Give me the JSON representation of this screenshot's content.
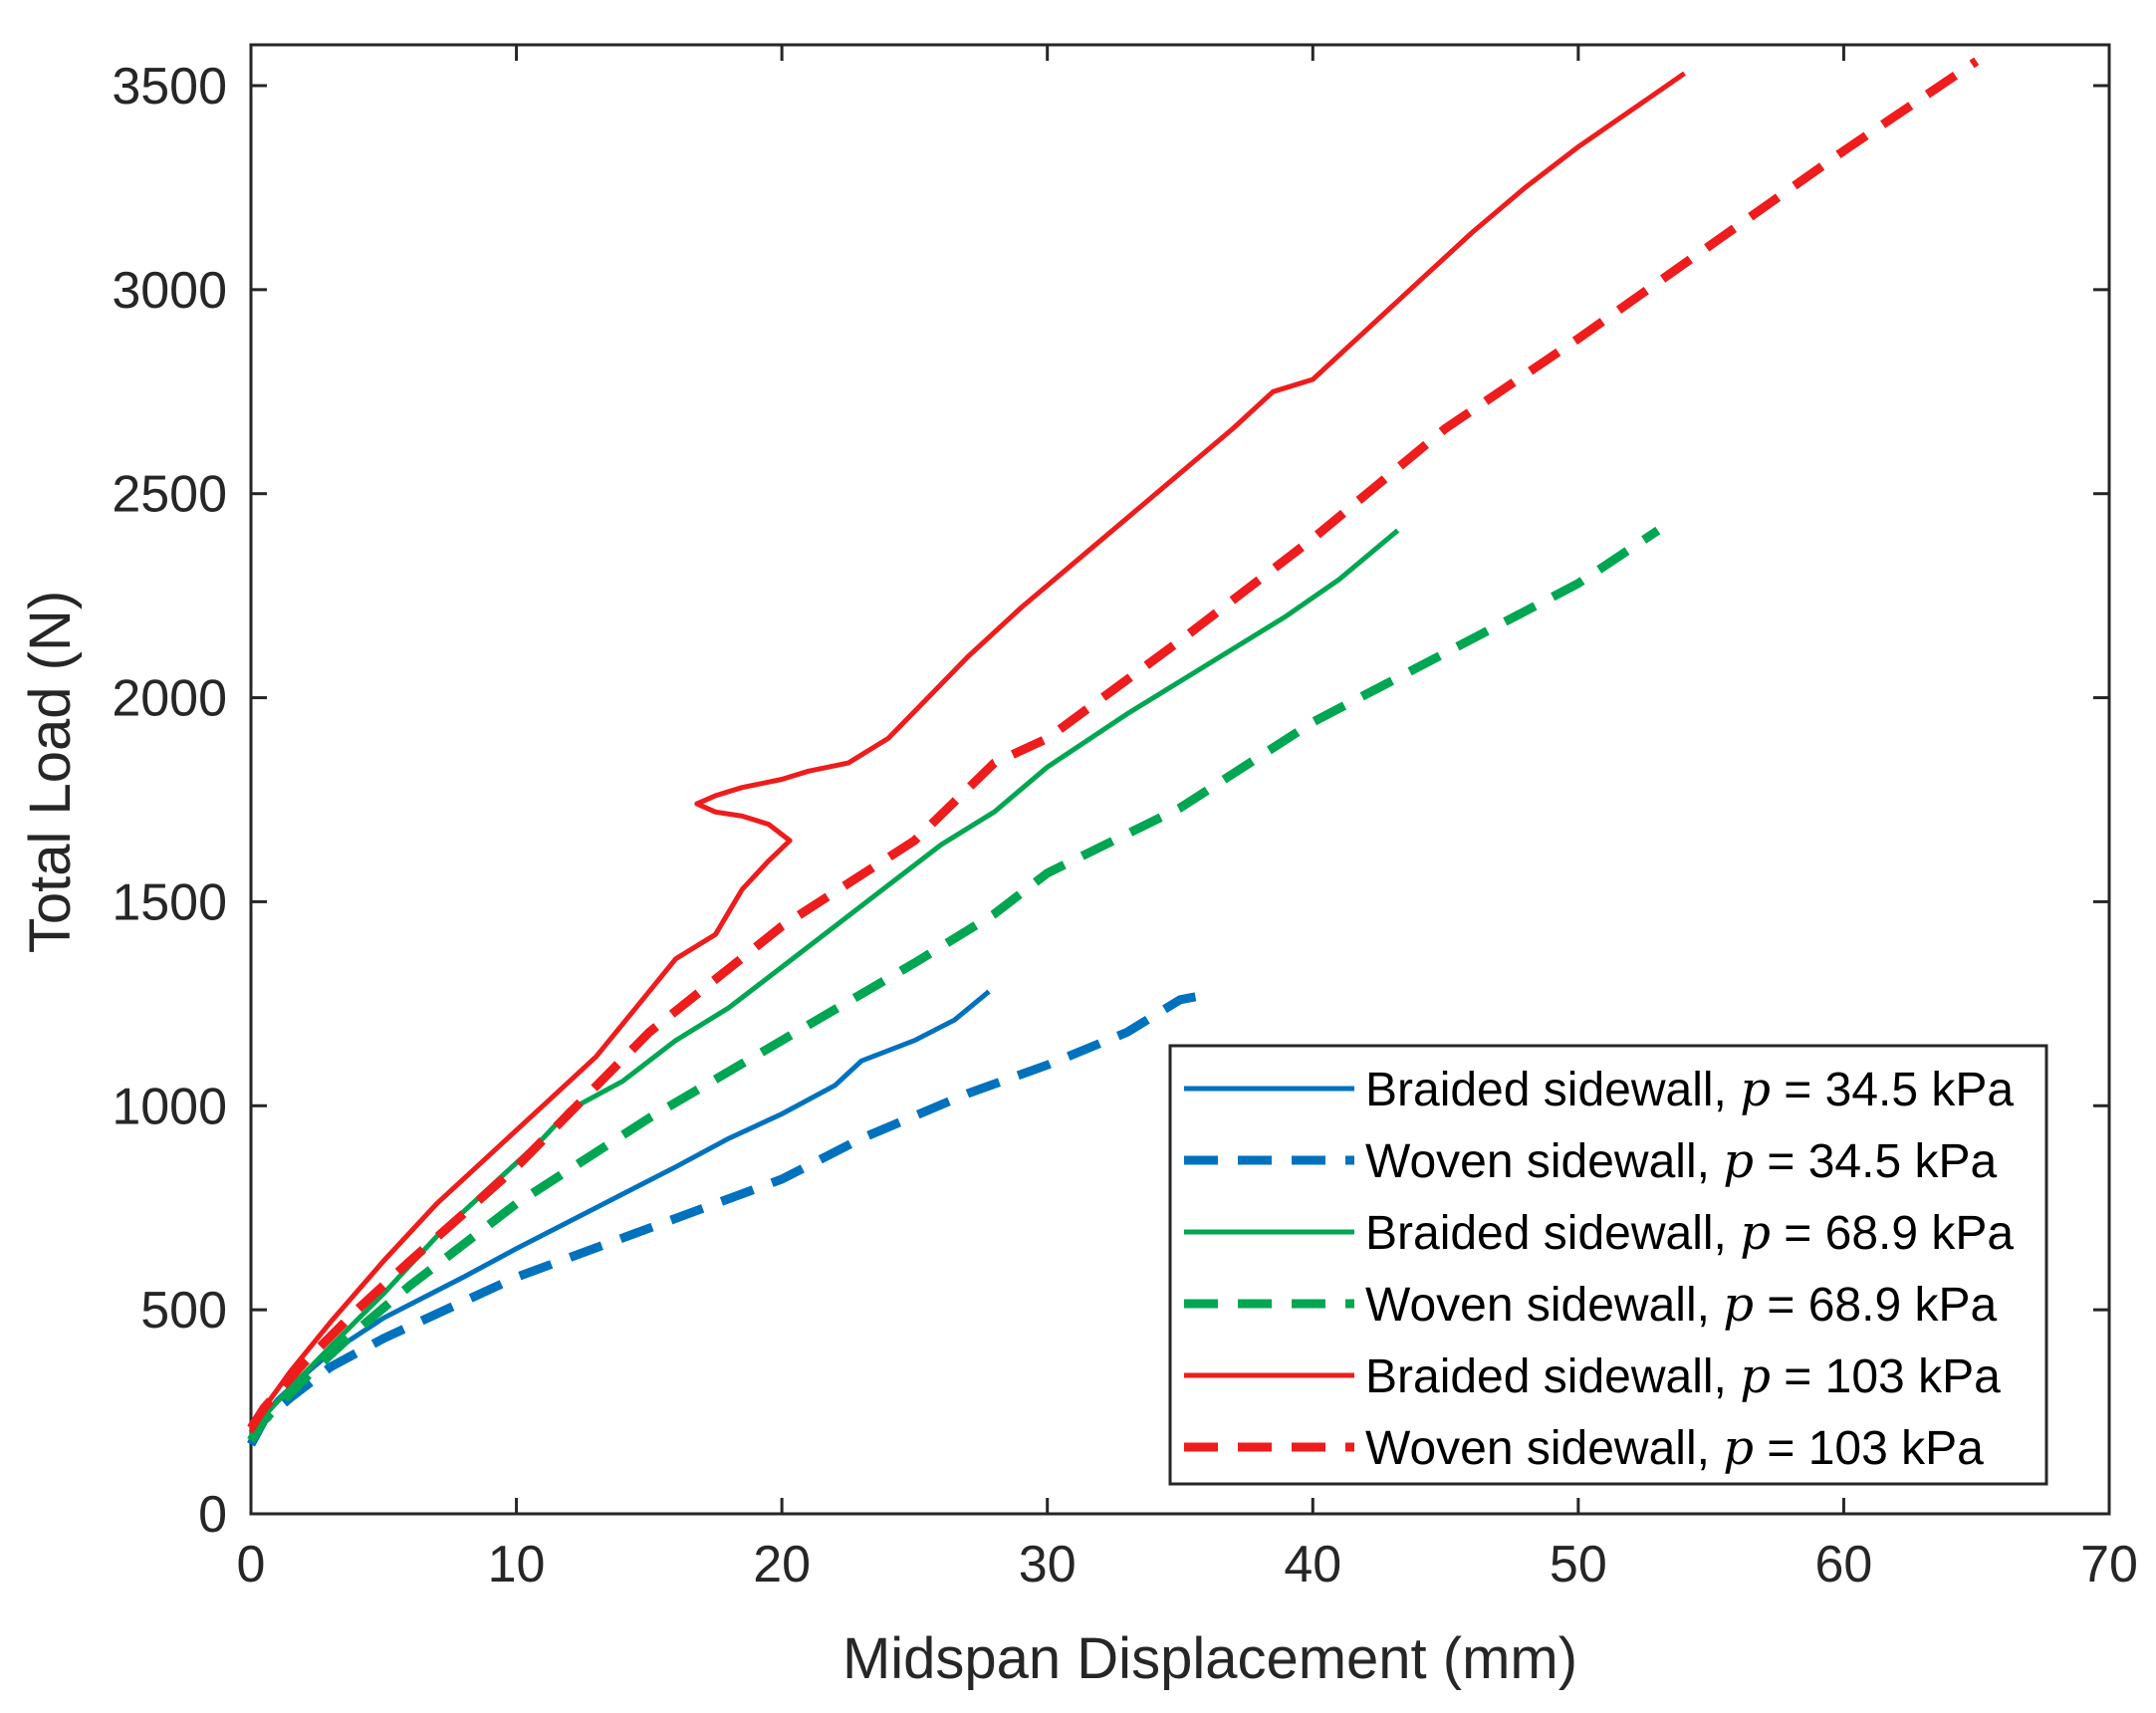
{
  "chart_data": {
    "type": "line",
    "title": "",
    "xlabel": "Midspan  Displacement  (mm)",
    "ylabel": "Total Load (N)",
    "xlim": [
      0,
      70
    ],
    "ylim": [
      0,
      3600
    ],
    "xticks": [
      0,
      10,
      20,
      30,
      40,
      50,
      60,
      70
    ],
    "yticks": [
      0,
      500,
      1000,
      1500,
      2000,
      2500,
      3000,
      3500
    ],
    "grid": false,
    "legend_position": "bottom-right",
    "series": [
      {
        "name": "Braided sidewall, p = 34.5 kPa",
        "label_prefix": "Braided sidewall, ",
        "label_symbol": "p",
        "label_suffix": " = 34.5 kPa",
        "color": "#0072BD",
        "style": "solid",
        "points": [
          [
            0,
            180
          ],
          [
            0.3,
            220
          ],
          [
            1,
            280
          ],
          [
            2,
            340
          ],
          [
            3,
            395
          ],
          [
            5,
            480
          ],
          [
            8,
            580
          ],
          [
            10,
            650
          ],
          [
            13,
            750
          ],
          [
            16,
            850
          ],
          [
            18,
            920
          ],
          [
            20,
            980
          ],
          [
            22,
            1050
          ],
          [
            23,
            1110
          ],
          [
            25,
            1160
          ],
          [
            26.5,
            1210
          ],
          [
            27.8,
            1280
          ]
        ]
      },
      {
        "name": "Woven sidewall, p = 34.5 kPa",
        "label_prefix": "Woven sidewall, ",
        "label_symbol": "p",
        "label_suffix": " = 34.5 kPa",
        "color": "#0072BD",
        "style": "dashed",
        "points": [
          [
            0,
            170
          ],
          [
            0.5,
            230
          ],
          [
            1.5,
            285
          ],
          [
            3,
            360
          ],
          [
            5,
            430
          ],
          [
            8,
            520
          ],
          [
            10,
            580
          ],
          [
            15,
            700
          ],
          [
            20,
            820
          ],
          [
            23,
            920
          ],
          [
            27,
            1030
          ],
          [
            30,
            1100
          ],
          [
            33,
            1180
          ],
          [
            35,
            1260
          ],
          [
            35.8,
            1270
          ]
        ]
      },
      {
        "name": "Braided sidewall, p = 68.9 kPa",
        "label_prefix": "Braided sidewall, ",
        "label_symbol": "p",
        "label_suffix": " = 68.9 kPa",
        "color": "#00A651",
        "style": "solid",
        "points": [
          [
            0,
            190
          ],
          [
            0.5,
            240
          ],
          [
            1.5,
            310
          ],
          [
            3,
            410
          ],
          [
            5,
            540
          ],
          [
            7,
            680
          ],
          [
            9,
            800
          ],
          [
            11,
            920
          ],
          [
            12,
            990
          ],
          [
            14,
            1060
          ],
          [
            16,
            1160
          ],
          [
            18,
            1240
          ],
          [
            20,
            1340
          ],
          [
            22,
            1440
          ],
          [
            24,
            1540
          ],
          [
            26,
            1640
          ],
          [
            28,
            1720
          ],
          [
            30,
            1830
          ],
          [
            33,
            1960
          ],
          [
            36,
            2080
          ],
          [
            39,
            2200
          ],
          [
            41,
            2290
          ],
          [
            43.2,
            2410
          ]
        ]
      },
      {
        "name": "Woven sidewall, p = 68.9 kPa",
        "label_prefix": "Woven sidewall, ",
        "label_symbol": "p",
        "label_suffix": " = 68.9 kPa",
        "color": "#00A651",
        "style": "dashed",
        "points": [
          [
            0,
            180
          ],
          [
            0.5,
            230
          ],
          [
            2,
            330
          ],
          [
            4,
            450
          ],
          [
            6,
            560
          ],
          [
            10,
            760
          ],
          [
            15,
            970
          ],
          [
            20,
            1160
          ],
          [
            25,
            1350
          ],
          [
            28,
            1470
          ],
          [
            30,
            1570
          ],
          [
            35,
            1730
          ],
          [
            40,
            1940
          ],
          [
            45,
            2110
          ],
          [
            50,
            2280
          ],
          [
            53,
            2410
          ]
        ]
      },
      {
        "name": "Braided sidewall, p = 103 kPa",
        "label_prefix": "Braided sidewall, ",
        "label_symbol": "p",
        "label_suffix": " = 103 kPa",
        "color": "#EE1C1C",
        "style": "solid",
        "points": [
          [
            0,
            200
          ],
          [
            0.5,
            260
          ],
          [
            1.5,
            350
          ],
          [
            3,
            470
          ],
          [
            5,
            620
          ],
          [
            7,
            760
          ],
          [
            9,
            880
          ],
          [
            11,
            1000
          ],
          [
            13,
            1120
          ],
          [
            15,
            1280
          ],
          [
            16,
            1360
          ],
          [
            17.5,
            1420
          ],
          [
            18.5,
            1530
          ],
          [
            19.5,
            1600
          ],
          [
            20.3,
            1650
          ],
          [
            19.5,
            1690
          ],
          [
            18.5,
            1710
          ],
          [
            17.5,
            1720
          ],
          [
            16.8,
            1740
          ],
          [
            17.5,
            1760
          ],
          [
            18.5,
            1780
          ],
          [
            20,
            1800
          ],
          [
            21,
            1820
          ],
          [
            22.5,
            1840
          ],
          [
            24,
            1900
          ],
          [
            25.5,
            2000
          ],
          [
            27,
            2100
          ],
          [
            29,
            2220
          ],
          [
            31,
            2330
          ],
          [
            33,
            2440
          ],
          [
            35,
            2550
          ],
          [
            37,
            2660
          ],
          [
            38.5,
            2750
          ],
          [
            40,
            2780
          ],
          [
            42,
            2900
          ],
          [
            44,
            3020
          ],
          [
            46,
            3140
          ],
          [
            48,
            3250
          ],
          [
            50,
            3350
          ],
          [
            52,
            3440
          ],
          [
            54,
            3530
          ]
        ]
      },
      {
        "name": "Woven sidewall, p = 103 kPa",
        "label_prefix": "Woven sidewall, ",
        "label_symbol": "p",
        "label_suffix": " = 103 kPa",
        "color": "#EE1C1C",
        "style": "dashed",
        "points": [
          [
            0,
            210
          ],
          [
            0.5,
            260
          ],
          [
            2,
            370
          ],
          [
            4,
            500
          ],
          [
            6,
            620
          ],
          [
            10,
            850
          ],
          [
            15,
            1180
          ],
          [
            20,
            1440
          ],
          [
            25,
            1650
          ],
          [
            28,
            1840
          ],
          [
            30,
            1900
          ],
          [
            35,
            2140
          ],
          [
            40,
            2390
          ],
          [
            45,
            2660
          ],
          [
            50,
            2880
          ],
          [
            55,
            3110
          ],
          [
            60,
            3340
          ],
          [
            65,
            3560
          ]
        ]
      }
    ]
  }
}
